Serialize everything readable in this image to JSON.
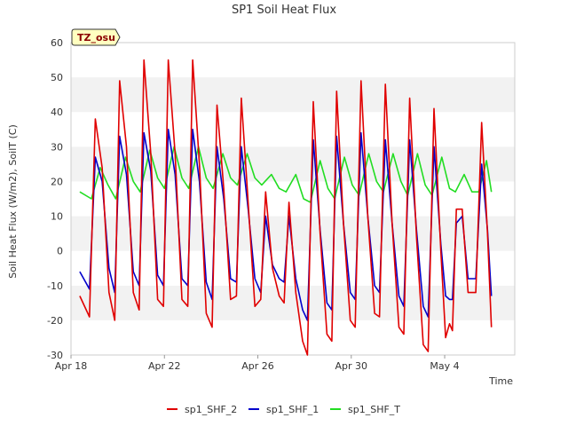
{
  "chart_data": {
    "type": "line",
    "title": "SP1 Soil Heat Flux",
    "xlabel": "Time",
    "ylabel": "Soil Heat Flux (W/m2), SoilT (C)",
    "badge": "TZ_osu",
    "ylim": [
      -30,
      60
    ],
    "yticks": [
      -30,
      -20,
      -10,
      0,
      10,
      20,
      30,
      40,
      50,
      60
    ],
    "xlim": [
      "2024-04-18",
      "2024-05-07"
    ],
    "xticks": [
      {
        "date": "2024-04-18",
        "label": "Apr 18"
      },
      {
        "date": "2024-04-22",
        "label": "Apr 22"
      },
      {
        "date": "2024-04-26",
        "label": "Apr 26"
      },
      {
        "date": "2024-04-30",
        "label": "Apr 30"
      },
      {
        "date": "2024-05-04",
        "label": "May 4"
      }
    ],
    "grid": "horizontal-bands",
    "legend": "bottom",
    "series": [
      {
        "name": "sp1_SHF_2",
        "color": "#e00000",
        "points": [
          [
            "2024-04-18T09:00",
            -13
          ],
          [
            "2024-04-18T19:00",
            -19
          ],
          [
            "2024-04-19T01:00",
            38
          ],
          [
            "2024-04-19T08:00",
            24
          ],
          [
            "2024-04-19T15:00",
            -12
          ],
          [
            "2024-04-19T21:00",
            -20
          ],
          [
            "2024-04-20T02:00",
            49
          ],
          [
            "2024-04-20T09:00",
            30
          ],
          [
            "2024-04-20T16:00",
            -12
          ],
          [
            "2024-04-20T22:00",
            -17
          ],
          [
            "2024-04-21T03:00",
            55
          ],
          [
            "2024-04-21T10:00",
            28
          ],
          [
            "2024-04-21T17:00",
            -14
          ],
          [
            "2024-04-21T23:00",
            -16
          ],
          [
            "2024-04-22T04:00",
            55
          ],
          [
            "2024-04-22T11:00",
            28
          ],
          [
            "2024-04-22T18:00",
            -14
          ],
          [
            "2024-04-23T00:00",
            -16
          ],
          [
            "2024-04-23T05:00",
            55
          ],
          [
            "2024-04-23T12:00",
            25
          ],
          [
            "2024-04-23T19:00",
            -18
          ],
          [
            "2024-04-24T01:00",
            -22
          ],
          [
            "2024-04-24T06:00",
            42
          ],
          [
            "2024-04-24T13:00",
            18
          ],
          [
            "2024-04-24T20:00",
            -14
          ],
          [
            "2024-04-25T02:00",
            -13
          ],
          [
            "2024-04-25T07:00",
            44
          ],
          [
            "2024-04-25T14:00",
            14
          ],
          [
            "2024-04-25T21:00",
            -16
          ],
          [
            "2024-04-26T03:00",
            -14
          ],
          [
            "2024-04-26T08:00",
            17
          ],
          [
            "2024-04-26T15:00",
            -5
          ],
          [
            "2024-04-26T22:00",
            -13
          ],
          [
            "2024-04-27T03:00",
            -15
          ],
          [
            "2024-04-27T08:00",
            14
          ],
          [
            "2024-04-27T15:00",
            -12
          ],
          [
            "2024-04-27T22:00",
            -26
          ],
          [
            "2024-04-28T03:00",
            -30
          ],
          [
            "2024-04-28T09:00",
            43
          ],
          [
            "2024-04-28T16:00",
            5
          ],
          [
            "2024-04-28T23:00",
            -24
          ],
          [
            "2024-04-29T04:00",
            -26
          ],
          [
            "2024-04-29T09:00",
            46
          ],
          [
            "2024-04-29T16:00",
            8
          ],
          [
            "2024-04-29T23:00",
            -20
          ],
          [
            "2024-04-30T04:00",
            -22
          ],
          [
            "2024-04-30T10:00",
            49
          ],
          [
            "2024-04-30T17:00",
            10
          ],
          [
            "2024-05-01T00:00",
            -18
          ],
          [
            "2024-05-01T05:00",
            -19
          ],
          [
            "2024-05-01T11:00",
            48
          ],
          [
            "2024-05-01T18:00",
            8
          ],
          [
            "2024-05-02T01:00",
            -22
          ],
          [
            "2024-05-02T06:00",
            -24
          ],
          [
            "2024-05-02T12:00",
            44
          ],
          [
            "2024-05-02T19:00",
            4
          ],
          [
            "2024-05-03T02:00",
            -27
          ],
          [
            "2024-05-03T07:00",
            -29
          ],
          [
            "2024-05-03T13:00",
            41
          ],
          [
            "2024-05-03T20:00",
            0
          ],
          [
            "2024-05-04T01:00",
            -25
          ],
          [
            "2024-05-04T05:00",
            -21
          ],
          [
            "2024-05-04T08:00",
            -23
          ],
          [
            "2024-05-04T12:00",
            12
          ],
          [
            "2024-05-04T18:00",
            12
          ],
          [
            "2024-05-05T00:00",
            -12
          ],
          [
            "2024-05-05T08:00",
            -12
          ],
          [
            "2024-05-05T14:00",
            37
          ],
          [
            "2024-05-05T20:00",
            5
          ],
          [
            "2024-05-06T00:00",
            -22
          ]
        ]
      },
      {
        "name": "sp1_SHF_1",
        "color": "#0000cc",
        "points": [
          [
            "2024-04-18T09:00",
            -6
          ],
          [
            "2024-04-18T19:00",
            -11
          ],
          [
            "2024-04-19T01:00",
            27
          ],
          [
            "2024-04-19T08:00",
            20
          ],
          [
            "2024-04-19T15:00",
            -5
          ],
          [
            "2024-04-19T21:00",
            -12
          ],
          [
            "2024-04-20T02:00",
            33
          ],
          [
            "2024-04-20T09:00",
            22
          ],
          [
            "2024-04-20T16:00",
            -6
          ],
          [
            "2024-04-20T22:00",
            -10
          ],
          [
            "2024-04-21T03:00",
            34
          ],
          [
            "2024-04-21T10:00",
            23
          ],
          [
            "2024-04-21T17:00",
            -7
          ],
          [
            "2024-04-21T23:00",
            -10
          ],
          [
            "2024-04-22T04:00",
            35
          ],
          [
            "2024-04-22T11:00",
            22
          ],
          [
            "2024-04-22T18:00",
            -8
          ],
          [
            "2024-04-23T00:00",
            -10
          ],
          [
            "2024-04-23T05:00",
            35
          ],
          [
            "2024-04-23T12:00",
            20
          ],
          [
            "2024-04-23T19:00",
            -9
          ],
          [
            "2024-04-24T01:00",
            -14
          ],
          [
            "2024-04-24T06:00",
            30
          ],
          [
            "2024-04-24T13:00",
            15
          ],
          [
            "2024-04-24T20:00",
            -8
          ],
          [
            "2024-04-25T02:00",
            -9
          ],
          [
            "2024-04-25T07:00",
            30
          ],
          [
            "2024-04-25T14:00",
            12
          ],
          [
            "2024-04-25T21:00",
            -8
          ],
          [
            "2024-04-26T03:00",
            -12
          ],
          [
            "2024-04-26T08:00",
            10
          ],
          [
            "2024-04-26T15:00",
            -4
          ],
          [
            "2024-04-26T22:00",
            -8
          ],
          [
            "2024-04-27T03:00",
            -9
          ],
          [
            "2024-04-27T08:00",
            10
          ],
          [
            "2024-04-27T15:00",
            -8
          ],
          [
            "2024-04-27T22:00",
            -17
          ],
          [
            "2024-04-28T03:00",
            -20
          ],
          [
            "2024-04-28T09:00",
            32
          ],
          [
            "2024-04-28T16:00",
            6
          ],
          [
            "2024-04-28T23:00",
            -15
          ],
          [
            "2024-04-29T04:00",
            -17
          ],
          [
            "2024-04-29T09:00",
            33
          ],
          [
            "2024-04-29T16:00",
            8
          ],
          [
            "2024-04-29T23:00",
            -12
          ],
          [
            "2024-04-30T04:00",
            -14
          ],
          [
            "2024-04-30T10:00",
            34
          ],
          [
            "2024-04-30T17:00",
            10
          ],
          [
            "2024-05-01T00:00",
            -10
          ],
          [
            "2024-05-01T05:00",
            -12
          ],
          [
            "2024-05-01T11:00",
            32
          ],
          [
            "2024-05-01T18:00",
            8
          ],
          [
            "2024-05-02T01:00",
            -13
          ],
          [
            "2024-05-02T06:00",
            -16
          ],
          [
            "2024-05-02T12:00",
            32
          ],
          [
            "2024-05-02T19:00",
            6
          ],
          [
            "2024-05-03T02:00",
            -16
          ],
          [
            "2024-05-03T07:00",
            -19
          ],
          [
            "2024-05-03T13:00",
            30
          ],
          [
            "2024-05-03T20:00",
            2
          ],
          [
            "2024-05-04T01:00",
            -13
          ],
          [
            "2024-05-04T05:00",
            -14
          ],
          [
            "2024-05-04T08:00",
            -14
          ],
          [
            "2024-05-04T12:00",
            8
          ],
          [
            "2024-05-04T18:00",
            10
          ],
          [
            "2024-05-05T00:00",
            -8
          ],
          [
            "2024-05-05T08:00",
            -8
          ],
          [
            "2024-05-05T14:00",
            25
          ],
          [
            "2024-05-05T20:00",
            6
          ],
          [
            "2024-05-06T00:00",
            -13
          ]
        ]
      },
      {
        "name": "sp1_SHF_T",
        "color": "#22dd22",
        "points": [
          [
            "2024-04-18T09:00",
            17
          ],
          [
            "2024-04-18T21:00",
            15
          ],
          [
            "2024-04-19T06:00",
            24
          ],
          [
            "2024-04-19T14:00",
            19
          ],
          [
            "2024-04-19T22:00",
            15
          ],
          [
            "2024-04-20T08:00",
            27
          ],
          [
            "2024-04-20T16:00",
            20
          ],
          [
            "2024-04-20T23:00",
            17
          ],
          [
            "2024-04-21T09:00",
            29
          ],
          [
            "2024-04-21T17:00",
            21
          ],
          [
            "2024-04-22T00:00",
            18
          ],
          [
            "2024-04-22T10:00",
            30
          ],
          [
            "2024-04-22T18:00",
            21
          ],
          [
            "2024-04-23T01:00",
            18
          ],
          [
            "2024-04-23T11:00",
            30
          ],
          [
            "2024-04-23T19:00",
            21
          ],
          [
            "2024-04-24T02:00",
            18
          ],
          [
            "2024-04-24T12:00",
            28
          ],
          [
            "2024-04-24T20:00",
            21
          ],
          [
            "2024-04-25T03:00",
            19
          ],
          [
            "2024-04-25T13:00",
            28
          ],
          [
            "2024-04-25T21:00",
            21
          ],
          [
            "2024-04-26T04:00",
            19
          ],
          [
            "2024-04-26T14:00",
            22
          ],
          [
            "2024-04-26T22:00",
            18
          ],
          [
            "2024-04-27T05:00",
            17
          ],
          [
            "2024-04-27T15:00",
            22
          ],
          [
            "2024-04-27T23:00",
            15
          ],
          [
            "2024-04-28T06:00",
            14
          ],
          [
            "2024-04-28T16:00",
            26
          ],
          [
            "2024-04-29T00:00",
            18
          ],
          [
            "2024-04-29T07:00",
            15
          ],
          [
            "2024-04-29T17:00",
            27
          ],
          [
            "2024-04-30T01:00",
            19
          ],
          [
            "2024-04-30T08:00",
            16
          ],
          [
            "2024-04-30T18:00",
            28
          ],
          [
            "2024-05-01T02:00",
            20
          ],
          [
            "2024-05-01T09:00",
            17
          ],
          [
            "2024-05-01T19:00",
            28
          ],
          [
            "2024-05-02T03:00",
            20
          ],
          [
            "2024-05-02T10:00",
            16
          ],
          [
            "2024-05-02T20:00",
            28
          ],
          [
            "2024-05-03T04:00",
            19
          ],
          [
            "2024-05-03T11:00",
            16
          ],
          [
            "2024-05-03T21:00",
            27
          ],
          [
            "2024-05-04T05:00",
            18
          ],
          [
            "2024-05-04T11:00",
            17
          ],
          [
            "2024-05-04T20:00",
            22
          ],
          [
            "2024-05-05T04:00",
            17
          ],
          [
            "2024-05-05T11:00",
            17
          ],
          [
            "2024-05-05T19:00",
            26
          ],
          [
            "2024-05-06T00:00",
            17
          ]
        ]
      }
    ]
  }
}
